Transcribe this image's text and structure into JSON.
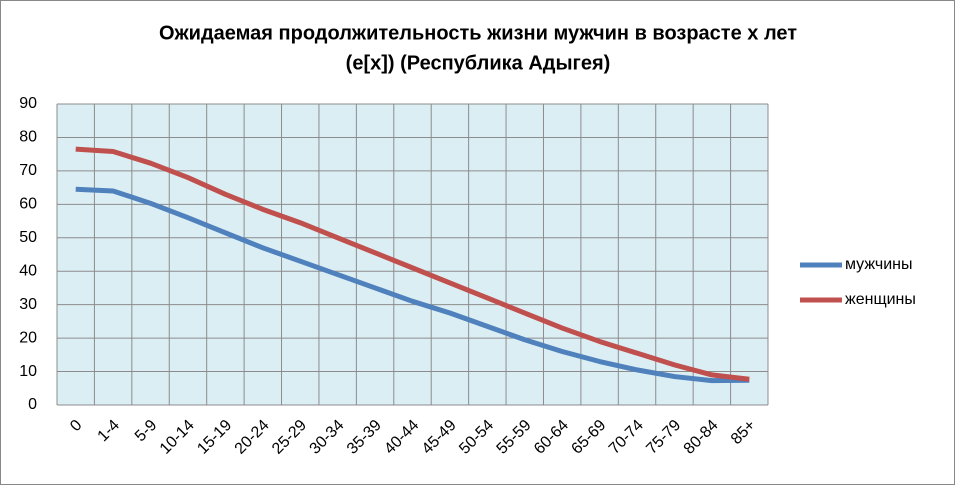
{
  "chart_data": {
    "type": "line",
    "title": [
      "Ожидаемая продолжительность жизни мужчин в возрасте х лет",
      "(e[x]) (Республика Адыгея)"
    ],
    "categories": [
      "0",
      "1-4",
      "5-9",
      "10-14",
      "15-19",
      "20-24",
      "25-29",
      "30-34",
      "35-39",
      "40-44",
      "45-49",
      "50-54",
      "55-59",
      "60-64",
      "65-69",
      "70-74",
      "75-79",
      "80-84",
      "85+"
    ],
    "series": [
      {
        "name": "мужчины",
        "color": "#4f81bd",
        "values": [
          64.5,
          64,
          60.3,
          56,
          51.5,
          47,
          43,
          39,
          35,
          31,
          27.5,
          23.5,
          19.5,
          16,
          13,
          10.5,
          8.5,
          7.3,
          7.4
        ]
      },
      {
        "name": "женщины",
        "color": "#c0504d",
        "values": [
          76.5,
          75.8,
          72.3,
          68,
          63,
          58.5,
          54.5,
          50,
          45.5,
          41,
          36.5,
          32,
          27.5,
          23,
          19,
          15.5,
          12,
          9,
          7.7
        ]
      }
    ],
    "ylim": [
      0,
      90
    ],
    "yticks": [
      0,
      10,
      20,
      30,
      40,
      50,
      60,
      70,
      80,
      90
    ],
    "grid": true,
    "legend": "right"
  }
}
